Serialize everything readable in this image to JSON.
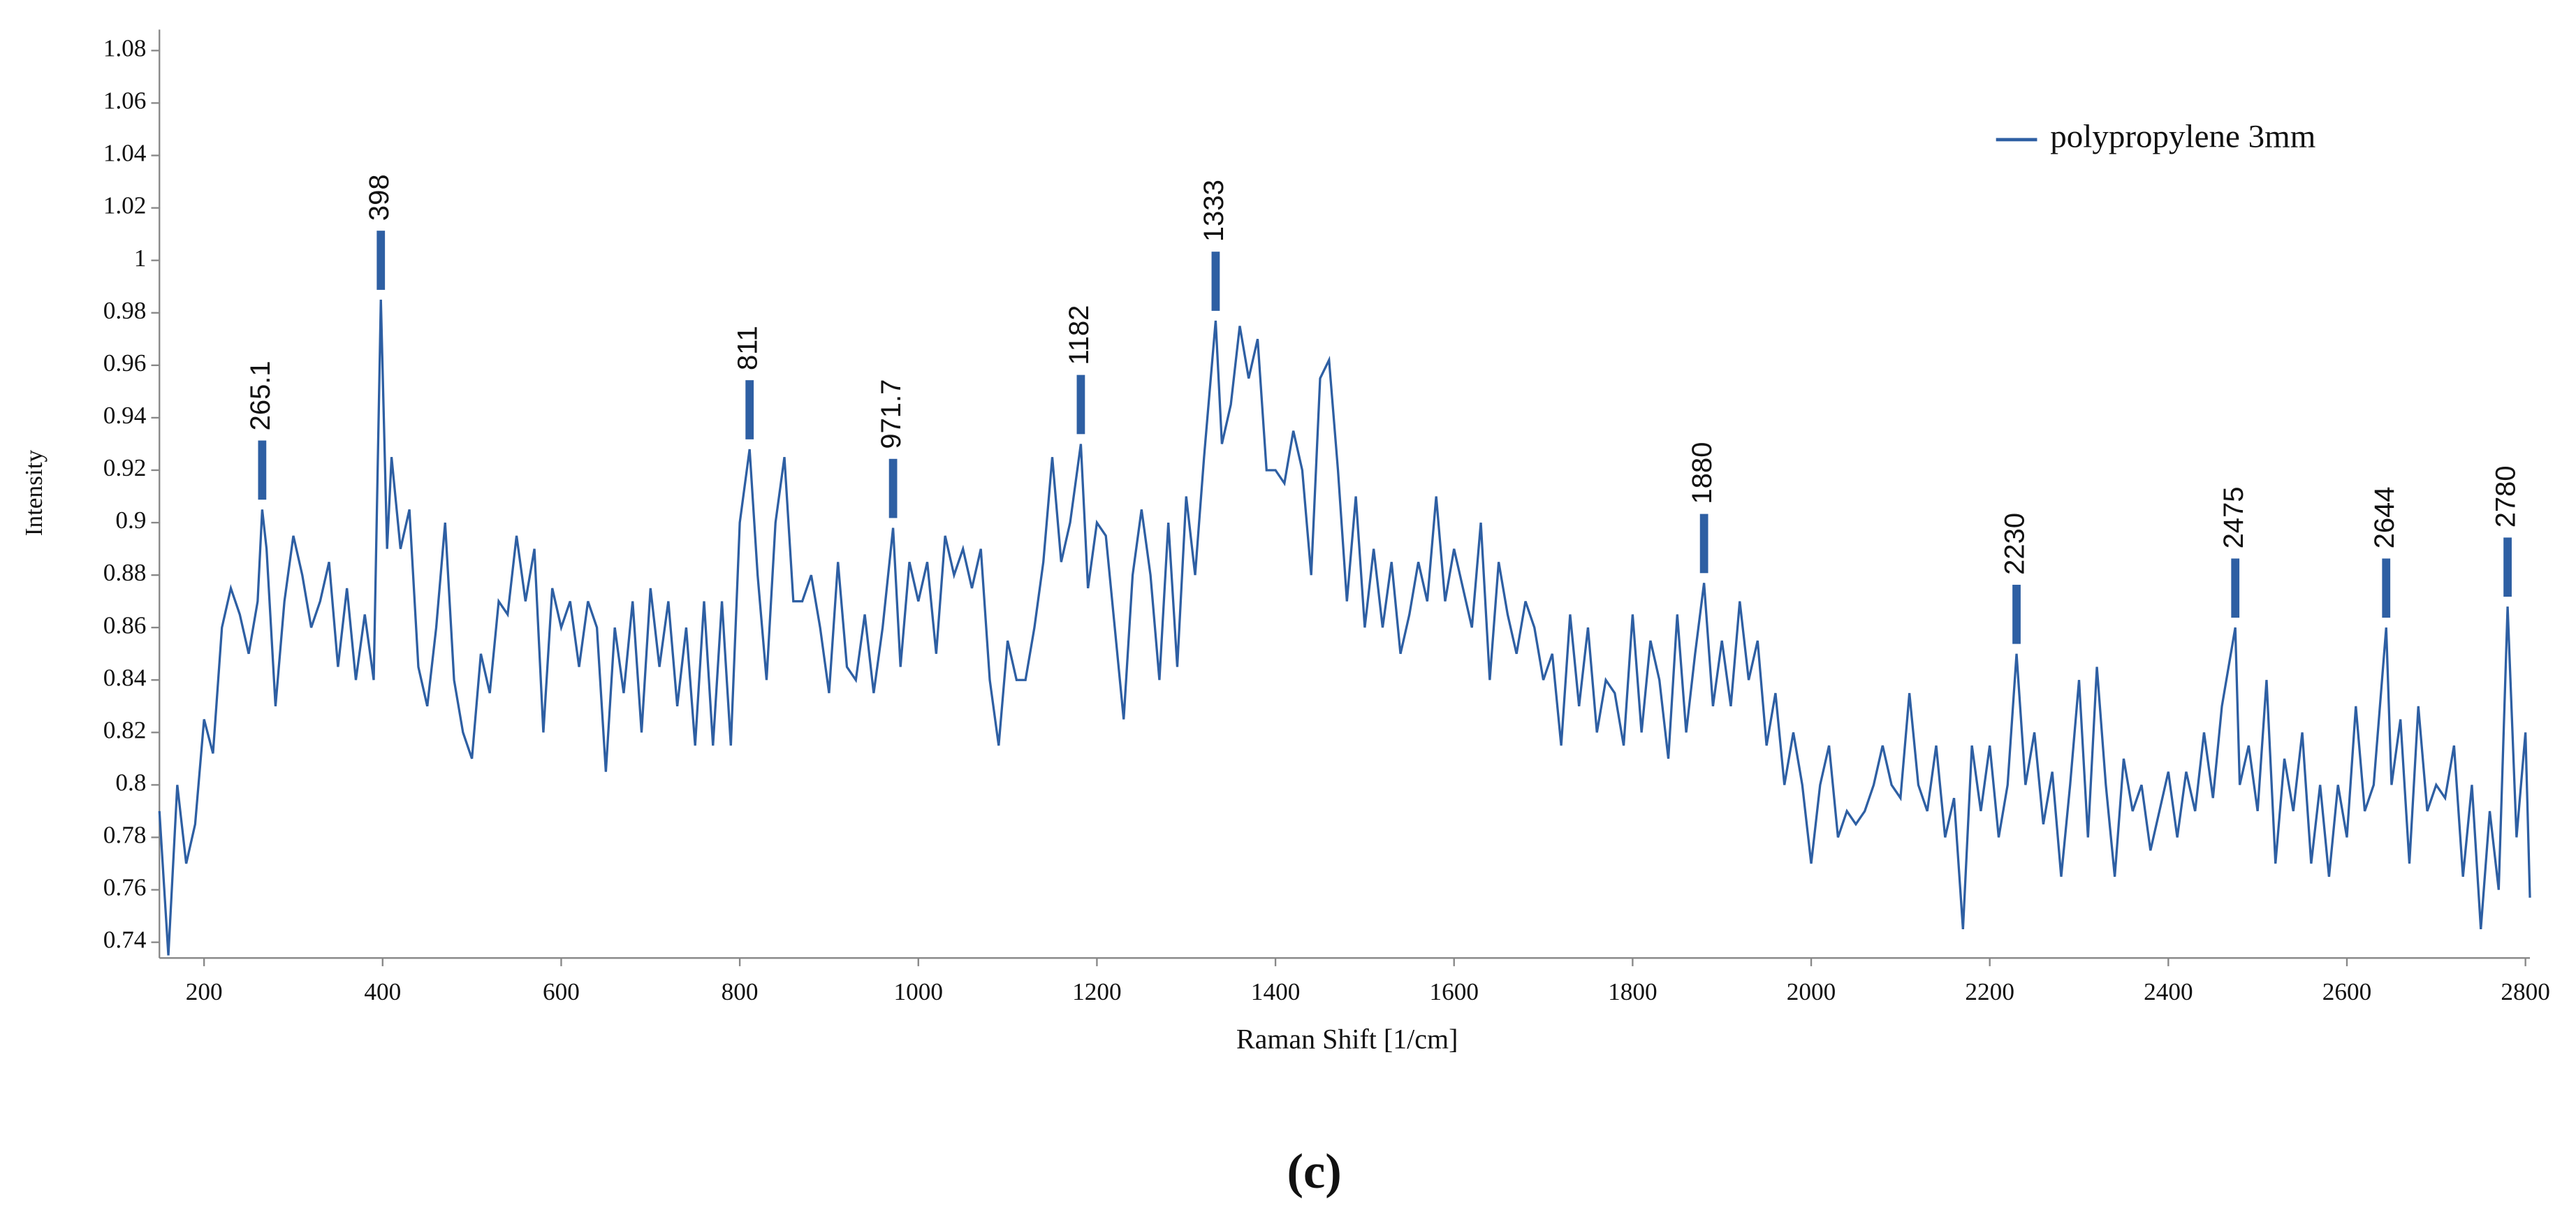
{
  "chart_data": {
    "type": "line",
    "caption": "(c)",
    "xlabel": "Raman Shift [1/cm]",
    "ylabel": "Intensity",
    "xlim": [
      150,
      2805
    ],
    "ylim": [
      0.734,
      1.088
    ],
    "xticks": [
      200,
      400,
      600,
      800,
      1000,
      1200,
      1400,
      1600,
      1800,
      2000,
      2200,
      2400,
      2600,
      2800
    ],
    "yticks": [
      0.74,
      0.76,
      0.78,
      0.8,
      0.82,
      0.84,
      0.86,
      0.88,
      0.9,
      0.92,
      0.94,
      0.96,
      0.98,
      1,
      1.02,
      1.04,
      1.06,
      1.08
    ],
    "legend": "top-right",
    "x": [
      150,
      160,
      170,
      180,
      190,
      200,
      210,
      220,
      230,
      240,
      250,
      260,
      265.1,
      270,
      280,
      290,
      300,
      310,
      320,
      330,
      340,
      350,
      360,
      370,
      380,
      390,
      398,
      405,
      410,
      420,
      430,
      440,
      450,
      460,
      470,
      480,
      490,
      500,
      510,
      520,
      530,
      540,
      550,
      560,
      570,
      580,
      590,
      600,
      610,
      620,
      630,
      640,
      650,
      660,
      670,
      680,
      690,
      700,
      710,
      720,
      730,
      740,
      750,
      760,
      770,
      780,
      790,
      800,
      811,
      820,
      830,
      840,
      850,
      860,
      870,
      880,
      890,
      900,
      910,
      920,
      930,
      940,
      950,
      960,
      971.7,
      980,
      990,
      1000,
      1010,
      1020,
      1030,
      1040,
      1050,
      1060,
      1070,
      1080,
      1090,
      1100,
      1110,
      1120,
      1130,
      1140,
      1150,
      1160,
      1170,
      1182,
      1190,
      1200,
      1210,
      1220,
      1230,
      1240,
      1250,
      1260,
      1270,
      1280,
      1290,
      1300,
      1310,
      1320,
      1333,
      1340,
      1350,
      1360,
      1370,
      1380,
      1390,
      1400,
      1410,
      1420,
      1430,
      1440,
      1450,
      1460,
      1470,
      1480,
      1490,
      1500,
      1510,
      1520,
      1530,
      1540,
      1550,
      1560,
      1570,
      1580,
      1590,
      1600,
      1610,
      1620,
      1630,
      1640,
      1650,
      1660,
      1670,
      1680,
      1690,
      1700,
      1710,
      1720,
      1730,
      1740,
      1750,
      1760,
      1770,
      1780,
      1790,
      1800,
      1810,
      1820,
      1830,
      1840,
      1850,
      1860,
      1870,
      1880,
      1890,
      1900,
      1910,
      1920,
      1930,
      1940,
      1950,
      1960,
      1970,
      1980,
      1990,
      2000,
      2010,
      2020,
      2030,
      2040,
      2050,
      2060,
      2070,
      2080,
      2090,
      2100,
      2110,
      2120,
      2130,
      2140,
      2150,
      2160,
      2170,
      2180,
      2190,
      2200,
      2210,
      2220,
      2230,
      2240,
      2250,
      2260,
      2270,
      2280,
      2290,
      2300,
      2310,
      2320,
      2330,
      2340,
      2350,
      2360,
      2370,
      2380,
      2390,
      2400,
      2410,
      2420,
      2430,
      2440,
      2450,
      2460,
      2475,
      2480,
      2490,
      2500,
      2510,
      2520,
      2530,
      2540,
      2550,
      2560,
      2570,
      2580,
      2590,
      2600,
      2610,
      2620,
      2630,
      2644,
      2650,
      2660,
      2670,
      2680,
      2690,
      2700,
      2710,
      2720,
      2730,
      2740,
      2750,
      2760,
      2770,
      2780,
      2790,
      2800,
      2805
    ],
    "series": [
      {
        "name": "polypropylene 3mm",
        "color": "#2e5fa3",
        "values": [
          0.79,
          0.735,
          0.8,
          0.77,
          0.785,
          0.825,
          0.812,
          0.86,
          0.875,
          0.865,
          0.85,
          0.87,
          0.905,
          0.89,
          0.83,
          0.87,
          0.895,
          0.88,
          0.86,
          0.87,
          0.885,
          0.845,
          0.875,
          0.84,
          0.865,
          0.84,
          0.985,
          0.89,
          0.925,
          0.89,
          0.905,
          0.845,
          0.83,
          0.86,
          0.9,
          0.84,
          0.82,
          0.81,
          0.85,
          0.835,
          0.87,
          0.865,
          0.895,
          0.87,
          0.89,
          0.82,
          0.875,
          0.86,
          0.87,
          0.845,
          0.87,
          0.86,
          0.805,
          0.86,
          0.835,
          0.87,
          0.82,
          0.875,
          0.845,
          0.87,
          0.83,
          0.86,
          0.815,
          0.87,
          0.815,
          0.87,
          0.815,
          0.9,
          0.928,
          0.88,
          0.84,
          0.9,
          0.925,
          0.87,
          0.87,
          0.88,
          0.86,
          0.835,
          0.885,
          0.845,
          0.84,
          0.865,
          0.835,
          0.86,
          0.898,
          0.845,
          0.885,
          0.87,
          0.885,
          0.85,
          0.895,
          0.88,
          0.89,
          0.875,
          0.89,
          0.84,
          0.815,
          0.855,
          0.84,
          0.84,
          0.86,
          0.885,
          0.925,
          0.885,
          0.9,
          0.93,
          0.875,
          0.9,
          0.895,
          0.86,
          0.825,
          0.88,
          0.905,
          0.88,
          0.84,
          0.9,
          0.845,
          0.91,
          0.88,
          0.925,
          0.977,
          0.93,
          0.945,
          0.975,
          0.955,
          0.97,
          0.92,
          0.92,
          0.915,
          0.935,
          0.92,
          0.88,
          0.955,
          0.962,
          0.92,
          0.87,
          0.91,
          0.86,
          0.89,
          0.86,
          0.885,
          0.85,
          0.865,
          0.885,
          0.87,
          0.91,
          0.87,
          0.89,
          0.875,
          0.86,
          0.9,
          0.84,
          0.885,
          0.865,
          0.85,
          0.87,
          0.86,
          0.84,
          0.85,
          0.815,
          0.865,
          0.83,
          0.86,
          0.82,
          0.84,
          0.835,
          0.815,
          0.865,
          0.82,
          0.855,
          0.84,
          0.81,
          0.865,
          0.82,
          0.85,
          0.877,
          0.83,
          0.855,
          0.83,
          0.87,
          0.84,
          0.855,
          0.815,
          0.835,
          0.8,
          0.82,
          0.8,
          0.77,
          0.8,
          0.815,
          0.78,
          0.79,
          0.785,
          0.79,
          0.8,
          0.815,
          0.8,
          0.795,
          0.835,
          0.8,
          0.79,
          0.815,
          0.78,
          0.795,
          0.745,
          0.815,
          0.79,
          0.815,
          0.78,
          0.8,
          0.85,
          0.8,
          0.82,
          0.785,
          0.805,
          0.765,
          0.8,
          0.84,
          0.78,
          0.845,
          0.8,
          0.765,
          0.81,
          0.79,
          0.8,
          0.775,
          0.79,
          0.805,
          0.78,
          0.805,
          0.79,
          0.82,
          0.795,
          0.83,
          0.86,
          0.8,
          0.815,
          0.79,
          0.84,
          0.77,
          0.81,
          0.79,
          0.82,
          0.77,
          0.8,
          0.765,
          0.8,
          0.78,
          0.83,
          0.79,
          0.8,
          0.86,
          0.8,
          0.825,
          0.77,
          0.83,
          0.79,
          0.8,
          0.795,
          0.815,
          0.765,
          0.8,
          0.745,
          0.79,
          0.76,
          0.868,
          0.78,
          0.82,
          0.757
        ]
      }
    ],
    "peaks": [
      {
        "x": 265.1,
        "y": 0.905
      },
      {
        "x": 398,
        "y": 0.985
      },
      {
        "x": 811,
        "y": 0.928
      },
      {
        "x": 971.7,
        "y": 0.898
      },
      {
        "x": 1182,
        "y": 0.93
      },
      {
        "x": 1333,
        "y": 0.977
      },
      {
        "x": 1880,
        "y": 0.877
      },
      {
        "x": 2230,
        "y": 0.85
      },
      {
        "x": 2475,
        "y": 0.86
      },
      {
        "x": 2644,
        "y": 0.86
      },
      {
        "x": 2780,
        "y": 0.868
      }
    ]
  }
}
